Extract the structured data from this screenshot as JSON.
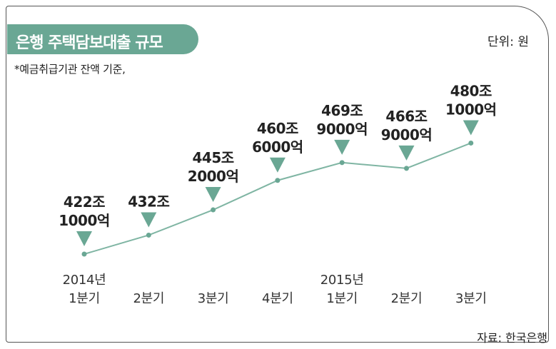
{
  "header": {
    "title": "은행 주택담보대출 규모",
    "unit": "단위: 원",
    "note": "*예금취급기관 잔액 기준,",
    "source": "자료: 한국은행"
  },
  "colors": {
    "accent": "#6aa794",
    "line": "#7fb5a3",
    "marker": "#6aa794"
  },
  "chart_data": {
    "type": "line",
    "title": "은행 주택담보대출 규모",
    "unit": "원",
    "categories": [
      [
        "2014년",
        "1분기"
      ],
      [
        "",
        "2분기"
      ],
      [
        "",
        "3분기"
      ],
      [
        "",
        "4분기"
      ],
      [
        "2015년",
        "1분기"
      ],
      [
        "",
        "2분기"
      ],
      [
        "",
        "3분기"
      ]
    ],
    "values": [
      4221000,
      4320000,
      4452000,
      4606000,
      4699000,
      4669000,
      4801000
    ],
    "value_unit": "억원",
    "data_labels": [
      [
        "422조",
        "1000억"
      ],
      [
        "432조",
        ""
      ],
      [
        "445조",
        "2000억"
      ],
      [
        "460조",
        "6000억"
      ],
      [
        "469조",
        "9000억"
      ],
      [
        "466조",
        "9000억"
      ],
      [
        "480조",
        "1000억"
      ]
    ],
    "ylim": [
      4180000,
      4840000
    ],
    "grid": false,
    "legend": "none"
  }
}
